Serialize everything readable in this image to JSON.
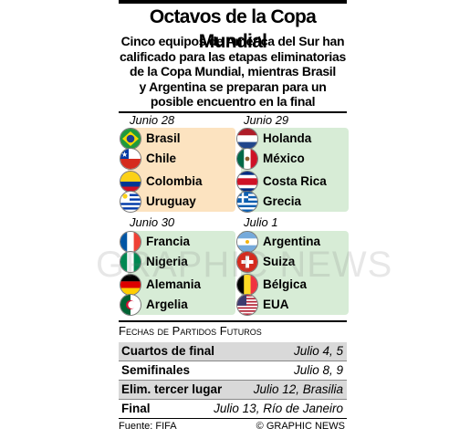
{
  "title": "Octavos de la Copa Mundial",
  "subtitle_lines": [
    "Cinco equipos de América del Sur han",
    "calificado para las etapas eliminatorias",
    "de la Copa Mundial, mientras Brasil",
    "y Argentina se preparan para un",
    "posible encuentro en la final"
  ],
  "dates": [
    "Junio 28",
    "Junio 29",
    "Junio 30",
    "Julio 1"
  ],
  "teams": {
    "jun28": [
      "Brasil",
      "Chile",
      "Colombia",
      "Uruguay"
    ],
    "jun29": [
      "Holanda",
      "México",
      "Costa Rica",
      "Grecia"
    ],
    "jun30": [
      "Francia",
      "Nigeria",
      "Alemania",
      "Argelia"
    ],
    "jul1": [
      "Argentina",
      "Suiza",
      "Bélgica",
      "EUA"
    ]
  },
  "future": {
    "heading": "Fechas de Partidos Futuros",
    "rows": [
      {
        "label": "Cuartos de final",
        "value": "Julio 4, 5"
      },
      {
        "label": "Semifinales",
        "value": "Julio 8, 9"
      },
      {
        "label": "Elim. tercer lugar",
        "value": "Julio 12, Brasilia"
      },
      {
        "label": "Final",
        "value": "Julio 13, Río de Janeiro"
      }
    ]
  },
  "source": "Fuente: FIFA",
  "credit": "© GRAPHIC NEWS",
  "watermark": "GRAPHIC NEWS",
  "colors": {
    "orange_panel": "#fce3c0",
    "green_panel": "#d7ecd6",
    "row_shade": "#d9d9d9"
  },
  "icons": [
    "brazil-flag-icon",
    "chile-flag-icon",
    "colombia-flag-icon",
    "uruguay-flag-icon",
    "netherlands-flag-icon",
    "mexico-flag-icon",
    "costa-rica-flag-icon",
    "greece-flag-icon",
    "france-flag-icon",
    "nigeria-flag-icon",
    "germany-flag-icon",
    "algeria-flag-icon",
    "argentina-flag-icon",
    "switzerland-flag-icon",
    "belgium-flag-icon",
    "usa-flag-icon"
  ]
}
